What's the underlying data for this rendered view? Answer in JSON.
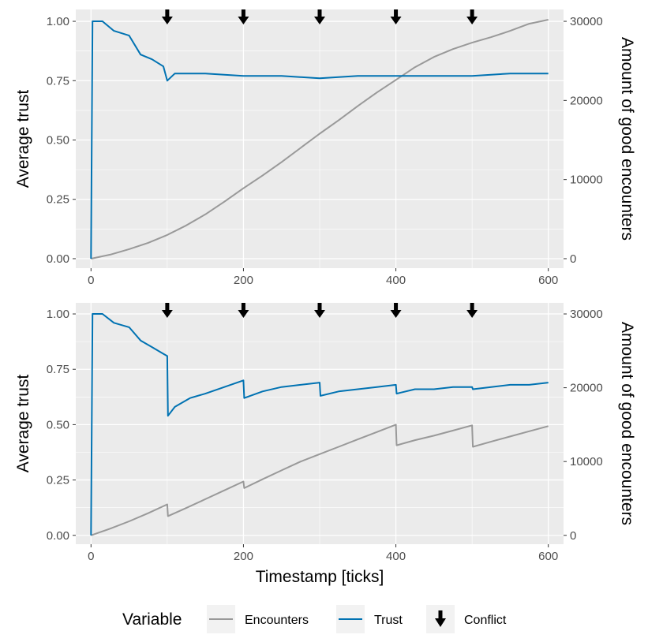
{
  "chart_data": [
    {
      "type": "line",
      "title": "",
      "xlabel": "",
      "ylabel": "Average trust",
      "y2label": "Amount of good encounters",
      "xlim": [
        -20,
        620
      ],
      "ylim": [
        -0.04,
        1.05
      ],
      "y2lim": [
        -1200,
        31500
      ],
      "x_ticks": [
        0,
        200,
        400,
        600
      ],
      "y_ticks": [
        0.0,
        0.25,
        0.5,
        0.75,
        1.0
      ],
      "y_tick_labels": [
        "0.00",
        "0.25",
        "0.50",
        "0.75",
        "1.00"
      ],
      "y2_ticks": [
        0,
        10000,
        20000,
        30000
      ],
      "conflicts": [
        100,
        200,
        300,
        400,
        500
      ],
      "series": [
        {
          "name": "Encounters",
          "axis": "right",
          "color": "#999999",
          "x": [
            0,
            25,
            50,
            75,
            100,
            125,
            150,
            175,
            200,
            225,
            250,
            275,
            300,
            325,
            350,
            375,
            400,
            425,
            450,
            475,
            500,
            525,
            550,
            575,
            600
          ],
          "values": [
            0,
            500,
            1200,
            2000,
            3000,
            4200,
            5600,
            7200,
            8900,
            10500,
            12200,
            14000,
            15800,
            17500,
            19300,
            21000,
            22600,
            24200,
            25500,
            26500,
            27300,
            28000,
            28800,
            29700,
            30200
          ]
        },
        {
          "name": "Trust",
          "axis": "left",
          "color": "#0072B2",
          "x": [
            0,
            2,
            15,
            30,
            50,
            65,
            80,
            95,
            100,
            110,
            150,
            200,
            250,
            300,
            350,
            400,
            450,
            500,
            550,
            600
          ],
          "values": [
            0.0,
            1.0,
            1.0,
            0.96,
            0.94,
            0.86,
            0.84,
            0.81,
            0.75,
            0.78,
            0.78,
            0.77,
            0.77,
            0.76,
            0.77,
            0.77,
            0.77,
            0.77,
            0.78,
            0.78
          ]
        }
      ]
    },
    {
      "type": "line",
      "title": "",
      "xlabel": "Timestamp [ticks]",
      "ylabel": "Average trust",
      "y2label": "Amount of good encounters",
      "xlim": [
        -20,
        620
      ],
      "ylim": [
        -0.04,
        1.05
      ],
      "y2lim": [
        -1200,
        31500
      ],
      "x_ticks": [
        0,
        200,
        400,
        600
      ],
      "y_ticks": [
        0.0,
        0.25,
        0.5,
        0.75,
        1.0
      ],
      "y_tick_labels": [
        "0.00",
        "0.25",
        "0.50",
        "0.75",
        "1.00"
      ],
      "y2_ticks": [
        0,
        10000,
        20000,
        30000
      ],
      "conflicts": [
        100,
        200,
        300,
        400,
        500
      ],
      "series": [
        {
          "name": "Encounters",
          "axis": "right",
          "color": "#999999",
          "x": [
            0,
            25,
            50,
            75,
            100,
            101,
            125,
            150,
            175,
            200,
            201,
            225,
            250,
            275,
            300,
            325,
            350,
            375,
            400,
            401,
            425,
            450,
            475,
            500,
            501,
            525,
            550,
            575,
            600
          ],
          "values": [
            0,
            900,
            1900,
            3000,
            4200,
            2600,
            3700,
            4900,
            6100,
            7300,
            6400,
            7600,
            8800,
            10000,
            11000,
            12000,
            13000,
            14000,
            15000,
            12200,
            12900,
            13500,
            14200,
            14900,
            12000,
            12700,
            13400,
            14100,
            14800
          ]
        },
        {
          "name": "Trust",
          "axis": "left",
          "color": "#0072B2",
          "x": [
            0,
            2,
            15,
            30,
            50,
            65,
            80,
            95,
            100,
            101,
            110,
            130,
            150,
            175,
            200,
            201,
            225,
            250,
            275,
            300,
            301,
            325,
            350,
            375,
            400,
            401,
            425,
            450,
            475,
            500,
            501,
            525,
            550,
            575,
            600
          ],
          "values": [
            0.0,
            1.0,
            1.0,
            0.96,
            0.94,
            0.88,
            0.85,
            0.82,
            0.81,
            0.54,
            0.58,
            0.62,
            0.64,
            0.67,
            0.7,
            0.62,
            0.65,
            0.67,
            0.68,
            0.69,
            0.63,
            0.65,
            0.66,
            0.67,
            0.68,
            0.64,
            0.66,
            0.66,
            0.67,
            0.67,
            0.66,
            0.67,
            0.68,
            0.68,
            0.69
          ]
        }
      ]
    }
  ],
  "legend": {
    "title": "Variable",
    "items": [
      {
        "label": "Encounters",
        "kind": "line",
        "color": "#999999"
      },
      {
        "label": "Trust",
        "kind": "line",
        "color": "#0072B2"
      },
      {
        "label": "Conflict",
        "kind": "arrow",
        "color": "#000000"
      }
    ]
  }
}
